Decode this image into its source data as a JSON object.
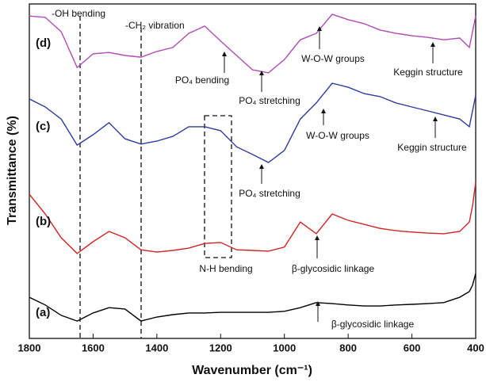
{
  "chart_data": {
    "type": "line",
    "x_label": "Wavenumber (cm⁻¹)",
    "y_label": "Transmittance (%)",
    "xlim": [
      1800,
      400
    ],
    "ylim": [
      0,
      100
    ],
    "xticks": [
      1800,
      1600,
      1400,
      1200,
      1000,
      800,
      600,
      400
    ],
    "x": [
      1800,
      1750,
      1700,
      1650,
      1600,
      1550,
      1500,
      1450,
      1400,
      1350,
      1300,
      1250,
      1200,
      1150,
      1100,
      1050,
      1000,
      950,
      900,
      850,
      800,
      750,
      700,
      650,
      600,
      550,
      500,
      450,
      420,
      410,
      400
    ],
    "series": [
      {
        "name": "(d)",
        "color": "#b04cb4",
        "values": [
          96.4,
          96.0,
          91.7,
          81.0,
          85.1,
          85.5,
          84.6,
          84.1,
          85.8,
          87.0,
          91.2,
          93.4,
          88.9,
          84.6,
          80.3,
          79.4,
          83.4,
          89.3,
          91.2,
          96.9,
          95.3,
          94.1,
          92.2,
          91.2,
          90.5,
          90.0,
          89.3,
          89.8,
          87.0,
          91.7,
          96.4
        ]
      },
      {
        "name": "(c)",
        "color": "#2f3c9e",
        "values": [
          71.6,
          69.2,
          65.6,
          57.8,
          60.9,
          64.5,
          59.7,
          58.1,
          59.0,
          60.4,
          63.3,
          63.3,
          62.1,
          57.3,
          55.0,
          52.6,
          56.2,
          65.6,
          70.4,
          76.3,
          75.1,
          73.2,
          72.3,
          70.4,
          69.2,
          68.0,
          66.8,
          65.6,
          63.3,
          68.0,
          72.7
        ]
      },
      {
        "name": "(b)",
        "color": "#d02424",
        "values": [
          43.1,
          37.2,
          30.1,
          25.4,
          28.9,
          32.0,
          30.1,
          26.5,
          25.8,
          26.3,
          27.0,
          28.4,
          28.7,
          26.5,
          26.3,
          26.1,
          27.3,
          34.8,
          31.3,
          37.2,
          35.3,
          34.1,
          32.9,
          32.2,
          31.8,
          31.5,
          31.3,
          32.0,
          34.8,
          39.6,
          46.7
        ]
      },
      {
        "name": "(a)",
        "color": "#000000",
        "values": [
          12.3,
          10.0,
          6.9,
          5.2,
          7.6,
          9.2,
          8.8,
          5.2,
          6.4,
          7.1,
          7.6,
          7.6,
          7.8,
          7.8,
          7.8,
          7.8,
          8.1,
          9.2,
          10.7,
          10.4,
          10.0,
          9.7,
          9.7,
          10.0,
          10.2,
          10.4,
          10.7,
          12.3,
          14.0,
          15.9,
          19.4
        ]
      }
    ],
    "annotations": [
      "-OH bending",
      "-CH₂ vibration",
      "PO₄ bending",
      "PO₄ stretching",
      "W-O-W groups",
      "Keggin structure",
      "W-O-W groups",
      "Keggin structure",
      "PO₄ stretching",
      "N-H bending",
      "β-glycosidic linkage",
      "β-glycosidic linkage"
    ]
  }
}
